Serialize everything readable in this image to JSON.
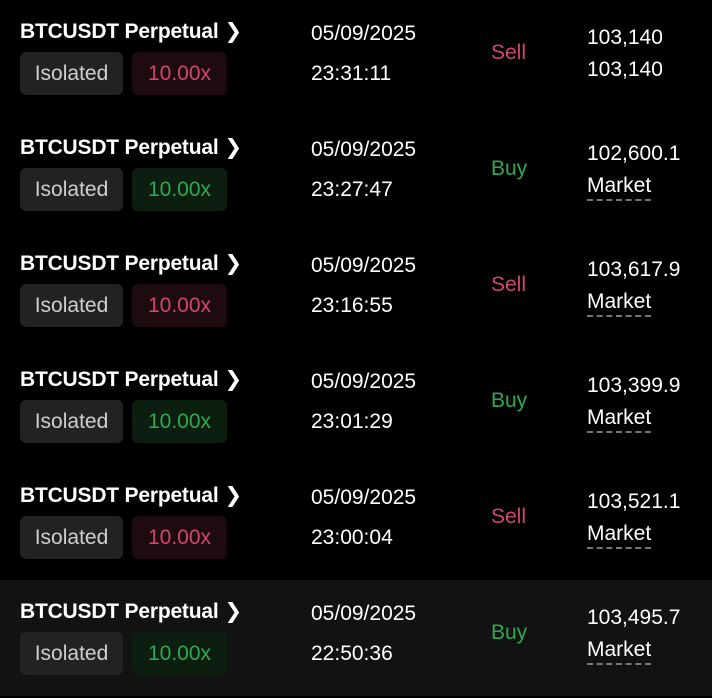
{
  "orders": [
    {
      "symbol": "BTCUSDT Perpetual",
      "margin": "Isolated",
      "leverage": "10.00x",
      "date": "05/09/2025",
      "time": "23:31:11",
      "side": "Sell",
      "price": "103,140",
      "type": "103,140"
    },
    {
      "symbol": "BTCUSDT Perpetual",
      "margin": "Isolated",
      "leverage": "10.00x",
      "date": "05/09/2025",
      "time": "23:27:47",
      "side": "Buy",
      "price": "102,600.1",
      "type": "Market"
    },
    {
      "symbol": "BTCUSDT Perpetual",
      "margin": "Isolated",
      "leverage": "10.00x",
      "date": "05/09/2025",
      "time": "23:16:55",
      "side": "Sell",
      "price": "103,617.9",
      "type": "Market"
    },
    {
      "symbol": "BTCUSDT Perpetual",
      "margin": "Isolated",
      "leverage": "10.00x",
      "date": "05/09/2025",
      "time": "23:01:29",
      "side": "Buy",
      "price": "103,399.9",
      "type": "Market"
    },
    {
      "symbol": "BTCUSDT Perpetual",
      "margin": "Isolated",
      "leverage": "10.00x",
      "date": "05/09/2025",
      "time": "23:00:04",
      "side": "Sell",
      "price": "103,521.1",
      "type": "Market"
    },
    {
      "symbol": "BTCUSDT Perpetual",
      "margin": "Isolated",
      "leverage": "10.00x",
      "date": "05/09/2025",
      "time": "22:50:36",
      "side": "Buy",
      "price": "103,495.7",
      "type": "Market"
    }
  ],
  "colors": {
    "sell": "#d0486a",
    "buy": "#2fa84f",
    "background": "#000000"
  },
  "chevron_icon": "chevron-right-icon"
}
